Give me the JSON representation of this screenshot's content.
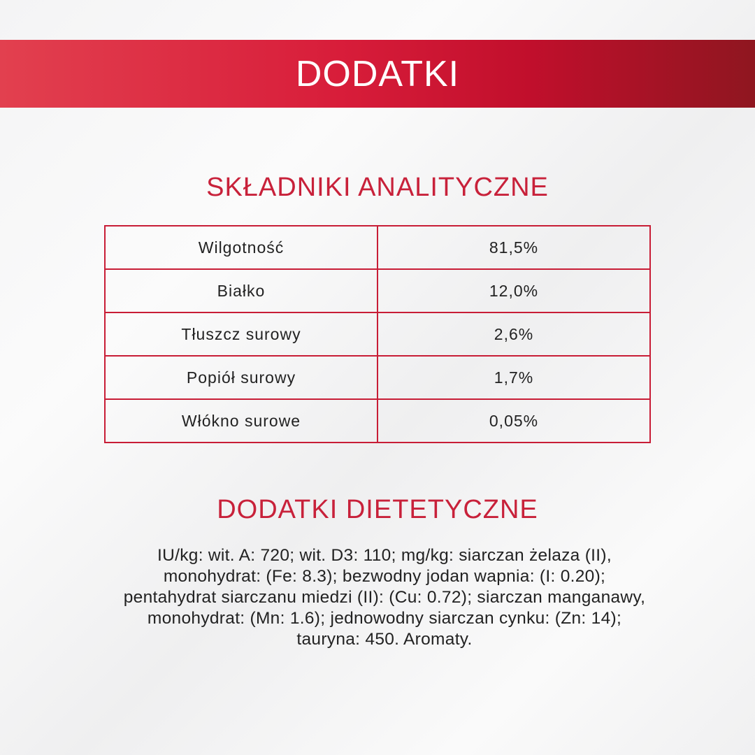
{
  "banner": {
    "title": "DODATKI"
  },
  "analytical": {
    "title": "SKŁADNIKI ANALITYCZNE",
    "rows": [
      {
        "name": "Wilgotność",
        "value": "81,5%"
      },
      {
        "name": "Białko",
        "value": "12,0%"
      },
      {
        "name": "Tłuszcz surowy",
        "value": "2,6%"
      },
      {
        "name": "Popiół surowy",
        "value": "1,7%"
      },
      {
        "name": "Włókno surowe",
        "value": "0,05%"
      }
    ]
  },
  "dietary": {
    "title": "DODATKI DIETETYCZNE",
    "text": "IU/kg: wit. A: 720; wit. D3: 110; mg/kg: siarczan żelaza (II), monohydrat: (Fe: 8.3); bezwodny jodan wapnia: (I: 0.20); pentahydrat siarczanu miedzi (II): (Cu: 0.72); siarczan manganawy, monohydrat: (Mn: 1.6); jednowodny siarczan cynku: (Zn: 14); tauryna: 450. Aromaty."
  },
  "colors": {
    "accent": "#c8213a",
    "banner_dark": "#8f1620"
  }
}
